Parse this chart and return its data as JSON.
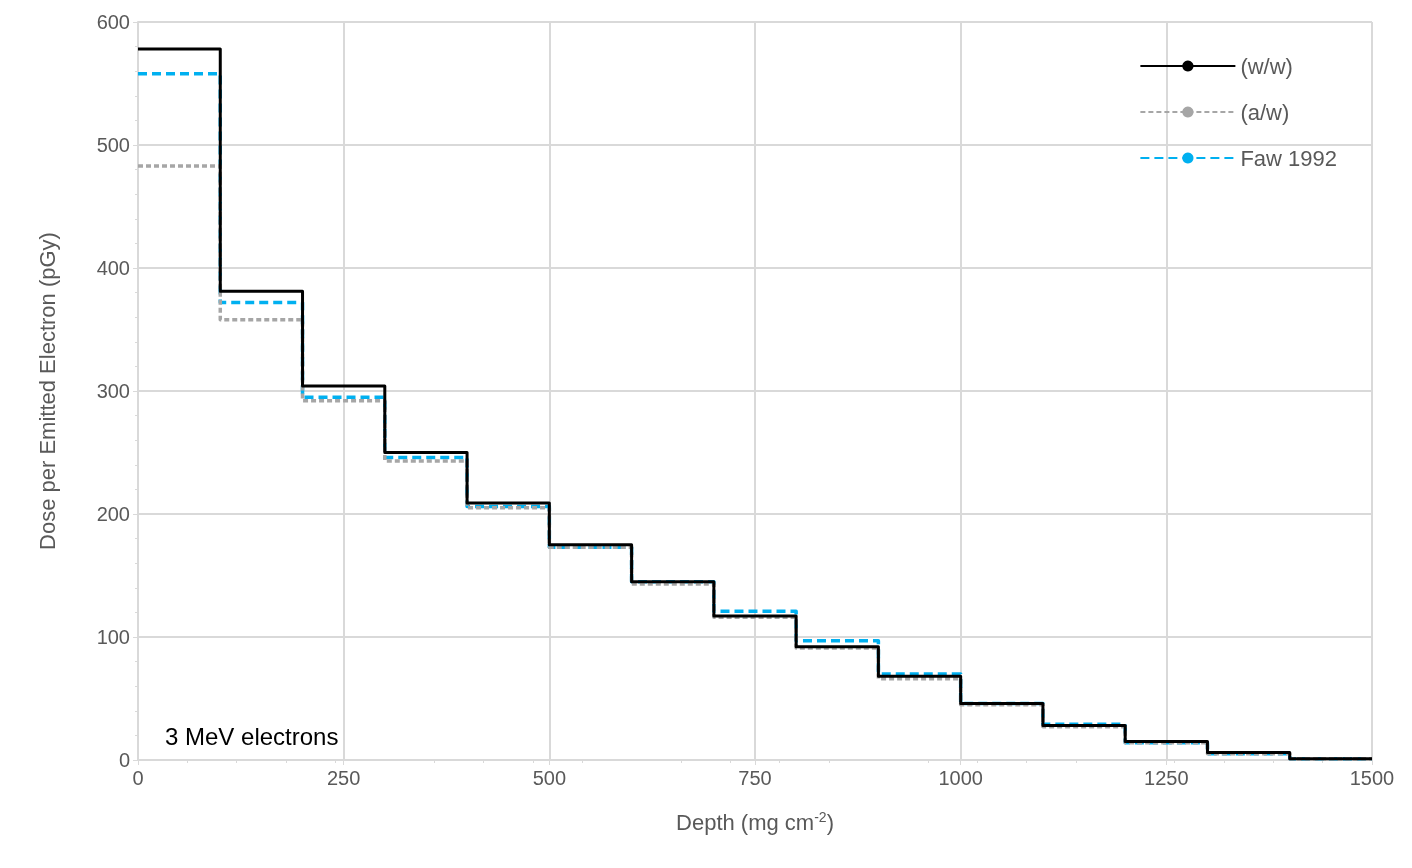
{
  "chart_data": {
    "type": "step",
    "xlabel": "Depth (mg cm$^{-2}$)",
    "ylabel": "Dose per Emitted Electron (pGy)",
    "annotations": [
      "3 MeV electrons"
    ],
    "x": [
      0,
      100,
      200,
      300,
      400,
      500,
      600,
      700,
      800,
      900,
      1000,
      1100,
      1200,
      1300,
      1400,
      1500
    ],
    "series": [
      {
        "name": "(w/w)",
        "color": "#000000",
        "line_style": "solid",
        "values": [
          578,
          381,
          304,
          250,
          209,
          175,
          145,
          117,
          92,
          68,
          46,
          28,
          15,
          6,
          1,
          1
        ]
      },
      {
        "name": "(a/w)",
        "color": "#a6a6a6",
        "line_style": "dotted",
        "values": [
          483,
          358,
          292,
          243,
          205,
          173,
          143,
          116,
          91,
          66,
          45,
          27,
          14,
          5,
          1,
          1
        ]
      },
      {
        "name": "Faw 1992",
        "color": "#00b0f0",
        "line_style": "dashed",
        "values": [
          558,
          372,
          295,
          246,
          206,
          173,
          145,
          121,
          97,
          70,
          46,
          29,
          14,
          5,
          1,
          1
        ]
      }
    ],
    "xlim": [
      0,
      1500
    ],
    "xticks": [
      0,
      250,
      500,
      750,
      1000,
      1250,
      1500
    ],
    "ylim": [
      0,
      600
    ],
    "yticks": [
      0,
      100,
      200,
      300,
      400,
      500,
      600
    ],
    "grid": true,
    "legend": "top right",
    "marker": "none"
  }
}
